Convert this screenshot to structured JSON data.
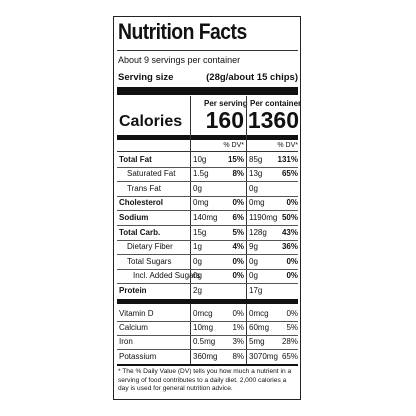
{
  "header": {
    "title": "Nutrition Facts",
    "servings": "About 9 servings per container",
    "serving_size_label": "Serving size",
    "serving_size_value": "(28g/about 15 chips)"
  },
  "columns": [
    "Per serving",
    "Per container"
  ],
  "calories": {
    "label": "Calories",
    "per_serving": "160",
    "per_container": "1360"
  },
  "dv_header": [
    "% DV*",
    "% DV*"
  ],
  "nutrients": [
    [
      "Total Fat",
      "10g",
      "15%",
      "85g",
      "131%"
    ],
    [
      "Saturated Fat",
      "1.5g",
      "8%",
      "13g",
      "65%"
    ],
    [
      "Trans Fat",
      "0g",
      "",
      "0g",
      ""
    ],
    [
      "Cholesterol",
      "0mg",
      "0%",
      "0mg",
      "0%"
    ],
    [
      "Sodium",
      "140mg",
      "6%",
      "1190mg",
      "50%"
    ],
    [
      "Total Carb.",
      "15g",
      "5%",
      "128g",
      "43%"
    ],
    [
      "Dietary Fiber",
      "1g",
      "4%",
      "9g",
      "36%"
    ],
    [
      "Total Sugars",
      "0g",
      "0%",
      "0g",
      "0%"
    ],
    [
      "Incl. Added Sugars",
      "0g",
      "0%",
      "0g",
      "0%"
    ],
    [
      "Protein",
      "2g",
      "",
      "17g",
      ""
    ]
  ],
  "vitamins": [
    [
      "Vitamin D",
      "0mcg",
      "0%",
      "0mcg",
      "0%"
    ],
    [
      "Calcium",
      "10mg",
      "1%",
      "60mg",
      "5%"
    ],
    [
      "Iron",
      "0.5mg",
      "3%",
      "5mg",
      "28%"
    ],
    [
      "Potassium",
      "360mg",
      "8%",
      "3070mg",
      "65%"
    ]
  ],
  "footnote": "* The % Daily Value (DV) tells you how much a nutrient in a serving of food contributes to a daily diet. 2,000 calories a day is used for general nutrition advice."
}
